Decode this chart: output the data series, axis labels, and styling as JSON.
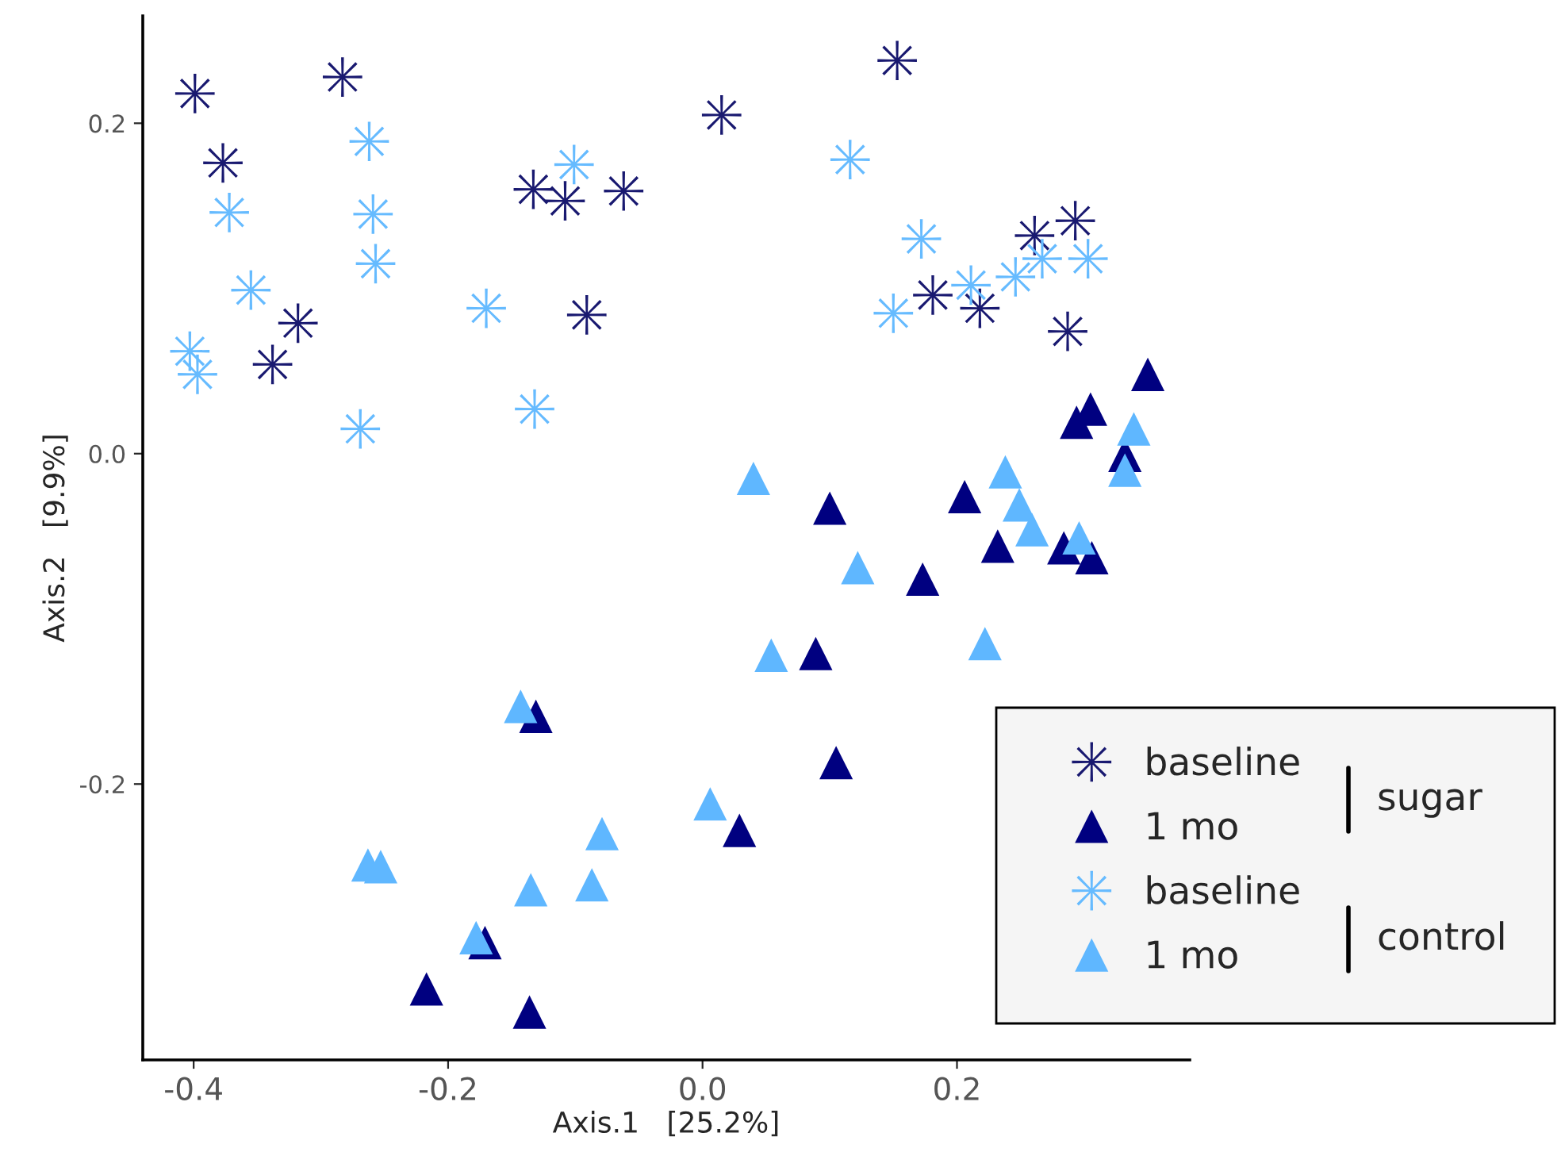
{
  "chart_data": {
    "type": "scatter",
    "xlabel": "Axis.1   [25.2%]",
    "ylabel": "Axis.2   [9.9%]",
    "xlim": [
      -0.44,
      0.383
    ],
    "ylim": [
      -0.367,
      0.265
    ],
    "xticks": [
      {
        "value": -0.4,
        "label": "-0.4"
      },
      {
        "value": -0.2,
        "label": "-0.2"
      },
      {
        "value": 0.0,
        "label": "0.0"
      },
      {
        "value": 0.2,
        "label": "0.2"
      }
    ],
    "yticks": [
      {
        "value": -0.2,
        "label": "-0.2"
      },
      {
        "value": 0.0,
        "label": "0.0"
      },
      {
        "value": 0.2,
        "label": "0.2"
      }
    ],
    "grid": false,
    "legend": "bottom right",
    "annotations": [
      "sugar",
      "control"
    ],
    "series": [
      {
        "name": "baseline",
        "color": "#191970",
        "marker": "star",
        "x": [
          -0.399,
          -0.283,
          -0.377,
          -0.318,
          -0.338,
          -0.133,
          -0.108,
          -0.062,
          -0.091,
          0.015,
          0.153,
          0.181,
          0.218,
          0.261,
          0.293,
          0.287
        ],
        "values": [
          0.218,
          0.228,
          0.176,
          0.079,
          0.054,
          0.16,
          0.153,
          0.159,
          0.084,
          0.205,
          0.238,
          0.096,
          0.088,
          0.132,
          0.141,
          0.074
        ]
      },
      {
        "name": "1 mo",
        "color": "#000080",
        "marker": "triangle",
        "x": [
          0.35,
          0.294,
          0.305,
          0.332,
          0.1,
          0.206,
          0.232,
          0.173,
          0.284,
          0.306,
          0.089,
          -0.131,
          0.105,
          0.029,
          -0.171,
          -0.217,
          -0.136
        ],
        "values": [
          0.048,
          0.019,
          0.027,
          -0.001,
          -0.033,
          -0.026,
          -0.056,
          -0.076,
          -0.057,
          -0.063,
          -0.121,
          -0.159,
          -0.187,
          -0.228,
          -0.296,
          -0.324,
          -0.338
        ]
      },
      {
        "name": "baseline",
        "color": "#66bbff",
        "marker": "star",
        "x": [
          -0.403,
          -0.397,
          -0.372,
          -0.355,
          -0.262,
          -0.259,
          -0.257,
          -0.269,
          -0.17,
          -0.132,
          -0.101,
          0.116,
          0.172,
          0.15,
          0.211,
          0.246,
          0.267,
          0.303
        ],
        "values": [
          0.062,
          0.048,
          0.146,
          0.099,
          0.189,
          0.145,
          0.115,
          0.015,
          0.088,
          0.027,
          0.175,
          0.178,
          0.13,
          0.085,
          0.102,
          0.107,
          0.118,
          0.118
        ]
      },
      {
        "name": "1 mo",
        "color": "#5fb7ff",
        "marker": "triangle",
        "x": [
          0.04,
          0.238,
          0.249,
          0.259,
          0.296,
          0.339,
          0.332,
          0.122,
          0.054,
          0.222,
          -0.143,
          0.006,
          -0.079,
          -0.087,
          -0.135,
          -0.263,
          -0.253,
          -0.178
        ],
        "values": [
          -0.015,
          -0.011,
          -0.031,
          -0.046,
          -0.051,
          0.015,
          -0.01,
          -0.069,
          -0.122,
          -0.115,
          -0.153,
          -0.212,
          -0.23,
          -0.261,
          -0.264,
          -0.249,
          -0.25,
          -0.293
        ]
      }
    ]
  }
}
